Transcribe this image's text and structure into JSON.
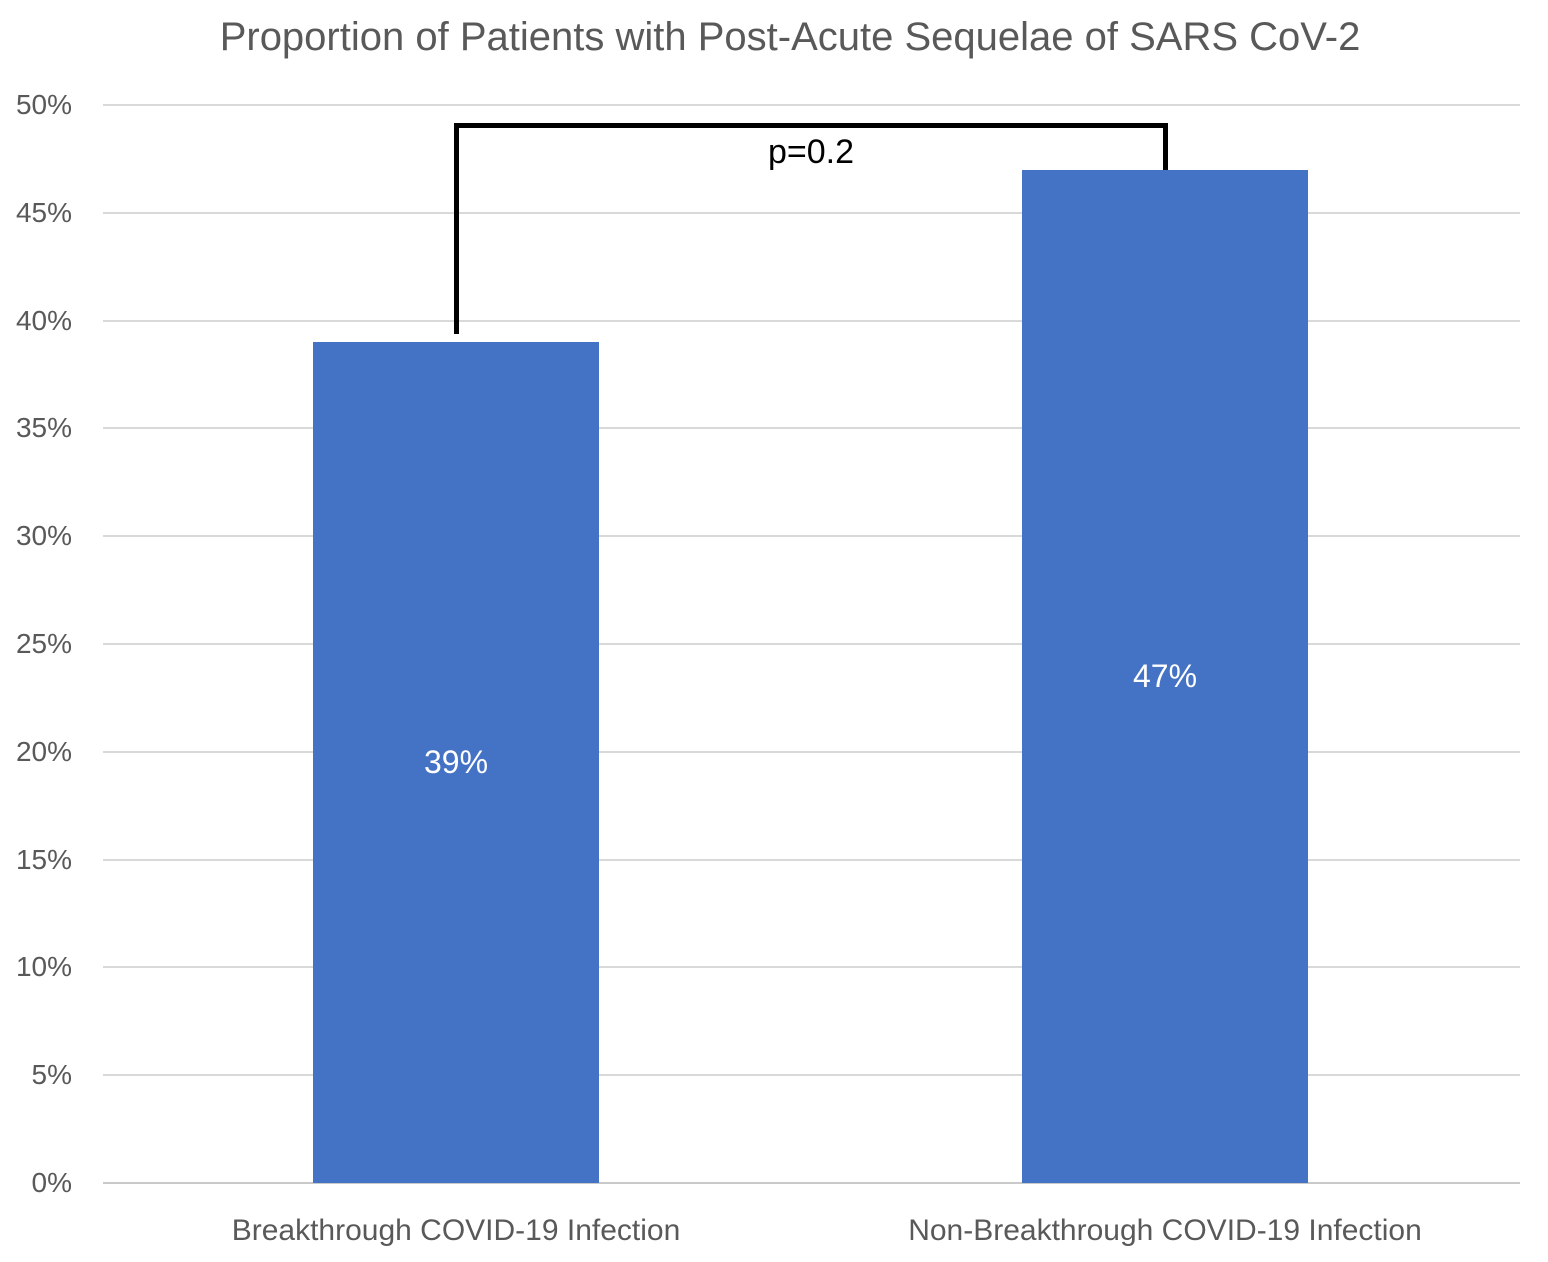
{
  "chart_data": {
    "type": "bar",
    "title": "Proportion of Patients with Post-Acute Sequelae of SARS CoV-2",
    "categories": [
      "Breakthrough COVID-19 Infection",
      "Non-Breakthrough COVID-19 Infection"
    ],
    "values": [
      39,
      47
    ],
    "bar_labels": [
      "39%",
      "47%"
    ],
    "y_tick_labels": [
      "0%",
      "5%",
      "10%",
      "15%",
      "20%",
      "25%",
      "30%",
      "35%",
      "40%",
      "45%",
      "50%"
    ],
    "y_tick_step": 5,
    "ylim": [
      0,
      50
    ],
    "xlabel": "",
    "ylabel": "",
    "grid": true,
    "legend": "none",
    "annotation": {
      "text": "p=0.2"
    },
    "colors": {
      "bar": "#4472C4",
      "gridline": "#D9D9D9",
      "baseline": "#C9C9C9",
      "axis_text": "#595959",
      "title_text": "#595959",
      "bar_label_text": "#FFFFFF",
      "bracket": "#000000",
      "background": "#FFFFFF"
    }
  }
}
